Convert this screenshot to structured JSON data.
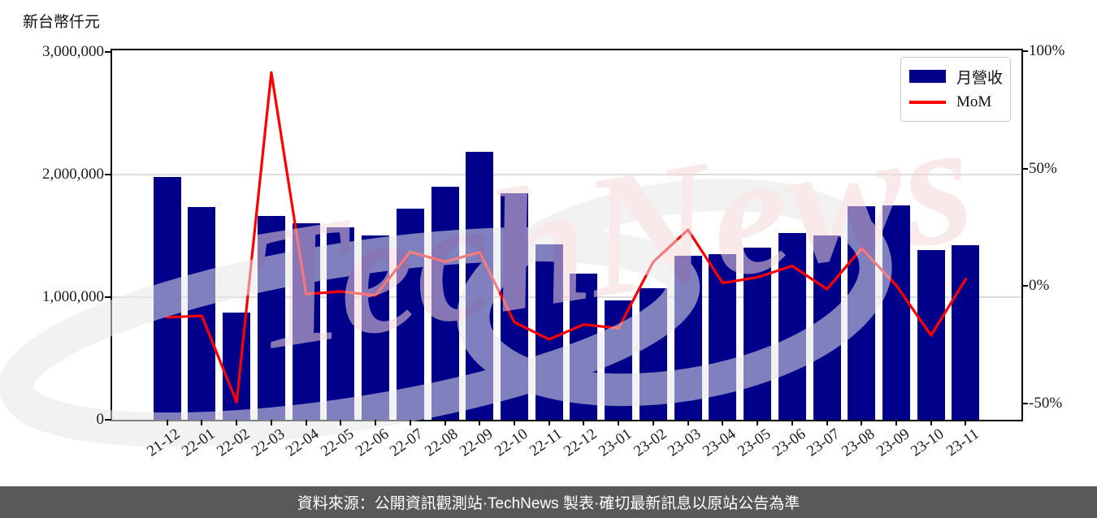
{
  "chart_data": {
    "type": "bar",
    "title": "",
    "categories": [
      "21-12",
      "22-01",
      "22-02",
      "22-03",
      "22-04",
      "22-05",
      "22-06",
      "22-07",
      "22-08",
      "22-09",
      "22-10",
      "22-11",
      "22-12",
      "23-01",
      "23-02",
      "23-03",
      "23-04",
      "23-05",
      "23-06",
      "23-07",
      "23-08",
      "23-09",
      "23-10",
      "23-11"
    ],
    "series": [
      {
        "name": "月營收",
        "type": "bar",
        "axis": "left",
        "color": "#00008B",
        "values": [
          1975000,
          1730000,
          870000,
          1660000,
          1600000,
          1565000,
          1500000,
          1720000,
          1900000,
          2180000,
          1845000,
          1430000,
          1190000,
          975000,
          1075000,
          1335000,
          1350000,
          1400000,
          1520000,
          1500000,
          1740000,
          1745000,
          1380000,
          1420000
        ]
      },
      {
        "name": "MoM",
        "type": "line",
        "axis": "right",
        "color": "#FF0000",
        "values": [
          -13.3,
          -12.7,
          -49.5,
          91.0,
          -3.4,
          -2.3,
          -4.0,
          14.6,
          10.4,
          14.4,
          -15.4,
          -22.7,
          -16.4,
          -18.0,
          10.3,
          24.0,
          1.3,
          3.7,
          8.6,
          -1.3,
          16.0,
          0.3,
          -21.0,
          3.0
        ]
      }
    ],
    "left_axis": {
      "label": "新台幣仟元",
      "min": 0,
      "max": 3010000,
      "tick_values": [
        0,
        1000000,
        2000000,
        3000000
      ],
      "tick_labels": [
        "0",
        "1,000,000",
        "2,000,000",
        "3,000,000"
      ],
      "grid_values": [
        1000000,
        2000000
      ]
    },
    "right_axis": {
      "min": -57,
      "max": 100.5,
      "tick_values": [
        -50,
        0,
        50,
        100
      ],
      "tick_labels": [
        "-50%",
        "0%",
        "50%",
        "100%"
      ]
    },
    "legend": {
      "position": "top-right",
      "items": [
        {
          "label": "月營收",
          "swatch": "bar",
          "color": "#00008B"
        },
        {
          "label": "MoM",
          "swatch": "line",
          "color": "#FF0000"
        }
      ]
    },
    "grid": "horizontal-left-axis",
    "colors": {
      "bar": "#00008B",
      "line": "#FF0000",
      "gridline": "#dcdcdc",
      "spine": "#000000"
    }
  },
  "watermark": {
    "text": "TechNews",
    "text_color": "#f5d8da",
    "swoosh_color": "#e9e9e9"
  },
  "footer": {
    "text": "資料來源：公開資訊觀測站·TechNews 製表·確切最新訊息以原站公告為準",
    "background": "#58595b",
    "text_color": "#ffffff"
  }
}
